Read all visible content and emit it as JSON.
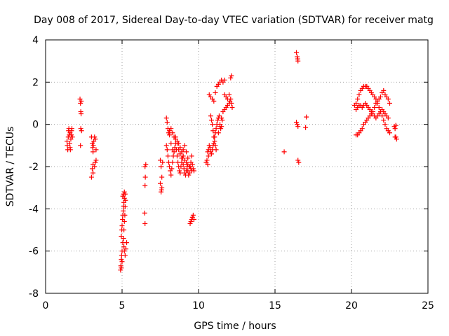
{
  "chart_data": {
    "type": "scatter",
    "title": "Day 008 of 2017, Sidereal Day-to-day VTEC variation (SDTVAR) for receiver matg",
    "xlabel": "GPS time / hours",
    "ylabel": "SDTVAR / TECUs",
    "xlim": [
      0,
      25
    ],
    "ylim": [
      -8,
      4
    ],
    "xticks": [
      0,
      5,
      10,
      15,
      20,
      25
    ],
    "yticks": [
      -8,
      -6,
      -4,
      -2,
      0,
      2,
      4
    ],
    "grid": true,
    "marker": "+",
    "color": "#ff0000",
    "series": [
      {
        "name": "SDTVAR",
        "points": [
          [
            1.4,
            -0.8
          ],
          [
            1.42,
            -1.0
          ],
          [
            1.45,
            -1.2
          ],
          [
            1.48,
            -0.6
          ],
          [
            1.5,
            -0.3
          ],
          [
            1.52,
            -0.2
          ],
          [
            1.55,
            -0.5
          ],
          [
            1.58,
            -0.9
          ],
          [
            1.6,
            -1.1
          ],
          [
            1.62,
            -1.2
          ],
          [
            1.65,
            -0.7
          ],
          [
            1.68,
            -0.5
          ],
          [
            1.7,
            -0.3
          ],
          [
            1.72,
            -0.2
          ],
          [
            1.75,
            -0.6
          ],
          [
            1.6,
            -0.4
          ],
          [
            2.25,
            1.2
          ],
          [
            2.28,
            1.0
          ],
          [
            2.3,
            0.6
          ],
          [
            2.32,
            0.5
          ],
          [
            2.3,
            -0.2
          ],
          [
            2.28,
            -1.0
          ],
          [
            2.35,
            -0.3
          ],
          [
            2.33,
            1.1
          ],
          [
            3.0,
            -0.6
          ],
          [
            3.05,
            -0.9
          ],
          [
            3.08,
            -1.1
          ],
          [
            3.1,
            -1.3
          ],
          [
            3.12,
            -1.0
          ],
          [
            3.15,
            -0.8
          ],
          [
            3.2,
            -0.6
          ],
          [
            3.25,
            -0.7
          ],
          [
            3.3,
            -1.2
          ],
          [
            3.1,
            -1.9
          ],
          [
            3.05,
            -2.1
          ],
          [
            3.0,
            -2.5
          ],
          [
            3.1,
            -2.3
          ],
          [
            3.2,
            -2.0
          ],
          [
            3.25,
            -1.8
          ],
          [
            3.3,
            -1.7
          ],
          [
            4.9,
            -6.9
          ],
          [
            4.92,
            -6.7
          ],
          [
            4.95,
            -6.4
          ],
          [
            4.97,
            -6.2
          ],
          [
            5.0,
            -6.0
          ],
          [
            5.05,
            -5.6
          ],
          [
            4.95,
            -5.3
          ],
          [
            4.98,
            -5.0
          ],
          [
            5.0,
            -4.8
          ],
          [
            5.03,
            -4.5
          ],
          [
            5.05,
            -4.3
          ],
          [
            5.08,
            -4.1
          ],
          [
            5.1,
            -3.9
          ],
          [
            5.12,
            -3.7
          ],
          [
            5.15,
            -3.5
          ],
          [
            5.05,
            -3.4
          ],
          [
            5.1,
            -3.3
          ],
          [
            5.15,
            -3.2
          ],
          [
            5.2,
            -3.3
          ],
          [
            5.22,
            -3.6
          ],
          [
            5.2,
            -3.9
          ],
          [
            5.18,
            -4.3
          ],
          [
            5.15,
            -4.6
          ],
          [
            5.12,
            -5.0
          ],
          [
            5.1,
            -5.4
          ],
          [
            5.12,
            -5.8
          ],
          [
            5.15,
            -6.0
          ],
          [
            5.2,
            -6.2
          ],
          [
            5.3,
            -5.6
          ],
          [
            5.25,
            -5.9
          ],
          [
            5.0,
            -6.5
          ],
          [
            4.95,
            -6.8
          ],
          [
            6.5,
            -2.0
          ],
          [
            6.52,
            -2.5
          ],
          [
            6.5,
            -2.9
          ],
          [
            6.48,
            -4.2
          ],
          [
            6.5,
            -4.7
          ],
          [
            6.55,
            -1.9
          ],
          [
            7.5,
            -1.7
          ],
          [
            7.55,
            -2.0
          ],
          [
            7.6,
            -2.5
          ],
          [
            7.6,
            -3.0
          ],
          [
            7.55,
            -3.2
          ],
          [
            7.5,
            -2.8
          ],
          [
            7.65,
            -1.8
          ],
          [
            7.58,
            -3.1
          ],
          [
            7.9,
            0.3
          ],
          [
            7.95,
            0.1
          ],
          [
            8.0,
            -0.2
          ],
          [
            8.05,
            -0.4
          ],
          [
            8.1,
            -0.3
          ],
          [
            8.2,
            -0.2
          ],
          [
            8.3,
            -0.4
          ],
          [
            8.4,
            -0.6
          ],
          [
            8.5,
            -0.7
          ],
          [
            8.6,
            -0.8
          ],
          [
            8.7,
            -0.9
          ],
          [
            8.8,
            -1.1
          ],
          [
            8.9,
            -1.3
          ],
          [
            9.0,
            -1.5
          ],
          [
            9.1,
            -1.7
          ],
          [
            9.2,
            -1.8
          ],
          [
            9.3,
            -1.9
          ],
          [
            9.4,
            -2.0
          ],
          [
            9.5,
            -2.1
          ],
          [
            9.55,
            -2.2
          ],
          [
            7.9,
            -1.0
          ],
          [
            7.95,
            -1.2
          ],
          [
            8.0,
            -1.5
          ],
          [
            8.05,
            -1.8
          ],
          [
            8.1,
            -2.0
          ],
          [
            8.15,
            -2.2
          ],
          [
            8.2,
            -2.4
          ],
          [
            8.25,
            -2.1
          ],
          [
            8.3,
            -1.8
          ],
          [
            8.35,
            -1.5
          ],
          [
            8.4,
            -1.3
          ],
          [
            8.45,
            -1.1
          ],
          [
            8.5,
            -0.9
          ],
          [
            8.55,
            -1.2
          ],
          [
            8.6,
            -1.5
          ],
          [
            8.65,
            -1.8
          ],
          [
            8.7,
            -2.0
          ],
          [
            8.75,
            -2.2
          ],
          [
            8.8,
            -2.3
          ],
          [
            8.85,
            -2.0
          ],
          [
            8.9,
            -1.8
          ],
          [
            8.95,
            -1.6
          ],
          [
            9.0,
            -1.9
          ],
          [
            9.05,
            -2.1
          ],
          [
            9.1,
            -2.3
          ],
          [
            9.15,
            -2.4
          ],
          [
            9.2,
            -2.2
          ],
          [
            9.25,
            -2.0
          ],
          [
            9.3,
            -2.2
          ],
          [
            9.35,
            -2.4
          ],
          [
            9.4,
            -2.3
          ],
          [
            9.45,
            -2.0
          ],
          [
            9.5,
            -1.8
          ],
          [
            9.55,
            -1.5
          ],
          [
            9.6,
            -1.9
          ],
          [
            9.65,
            -2.1
          ],
          [
            9.7,
            -2.2
          ],
          [
            8.5,
            -0.6
          ],
          [
            8.6,
            -0.9
          ],
          [
            8.7,
            -1.2
          ],
          [
            8.8,
            -1.4
          ],
          [
            8.9,
            -1.6
          ],
          [
            9.0,
            -1.2
          ],
          [
            9.1,
            -1.0
          ],
          [
            9.2,
            -1.3
          ],
          [
            9.3,
            -1.6
          ],
          [
            8.1,
            -0.5
          ],
          [
            8.2,
            -0.9
          ],
          [
            8.3,
            -1.2
          ],
          [
            9.45,
            -4.7
          ],
          [
            9.5,
            -4.6
          ],
          [
            9.55,
            -4.5
          ],
          [
            9.6,
            -4.4
          ],
          [
            9.65,
            -4.3
          ],
          [
            9.7,
            -4.5
          ],
          [
            10.5,
            -1.8
          ],
          [
            10.55,
            -1.7
          ],
          [
            10.6,
            -1.9
          ],
          [
            10.65,
            -1.5
          ],
          [
            10.6,
            -1.3
          ],
          [
            10.65,
            -1.2
          ],
          [
            10.7,
            -1.0
          ],
          [
            10.75,
            -1.1
          ],
          [
            10.8,
            -1.3
          ],
          [
            10.85,
            -1.4
          ],
          [
            10.9,
            -1.2
          ],
          [
            10.95,
            -1.0
          ],
          [
            11.0,
            -0.9
          ],
          [
            11.05,
            -0.6
          ],
          [
            11.1,
            -0.4
          ],
          [
            11.15,
            -0.2
          ],
          [
            11.2,
            0.0
          ],
          [
            11.25,
            0.2
          ],
          [
            11.3,
            0.3
          ],
          [
            11.35,
            0.4
          ],
          [
            11.4,
            0.0
          ],
          [
            11.45,
            -0.2
          ],
          [
            11.5,
            -0.1
          ],
          [
            11.55,
            0.2
          ],
          [
            10.7,
            1.4
          ],
          [
            10.8,
            1.3
          ],
          [
            10.9,
            1.2
          ],
          [
            11.0,
            1.1
          ],
          [
            11.1,
            1.5
          ],
          [
            11.2,
            1.8
          ],
          [
            11.3,
            1.9
          ],
          [
            11.4,
            2.0
          ],
          [
            11.5,
            2.1
          ],
          [
            11.6,
            2.0
          ],
          [
            11.7,
            2.1
          ],
          [
            12.1,
            2.2
          ],
          [
            12.15,
            2.3
          ],
          [
            10.8,
            0.4
          ],
          [
            10.85,
            0.2
          ],
          [
            10.9,
            0.0
          ],
          [
            10.95,
            -0.3
          ],
          [
            11.0,
            -0.6
          ],
          [
            11.05,
            -0.8
          ],
          [
            11.1,
            -1.0
          ],
          [
            11.15,
            -1.2
          ],
          [
            11.3,
            -0.4
          ],
          [
            11.4,
            -0.1
          ],
          [
            11.5,
            0.3
          ],
          [
            11.6,
            0.6
          ],
          [
            11.7,
            0.7
          ],
          [
            11.8,
            0.8
          ],
          [
            11.9,
            0.9
          ],
          [
            12.0,
            1.0
          ],
          [
            12.05,
            1.1
          ],
          [
            12.1,
            1.2
          ],
          [
            12.15,
            1.0
          ],
          [
            12.2,
            0.8
          ],
          [
            11.8,
            1.3
          ],
          [
            11.9,
            1.2
          ],
          [
            12.0,
            1.4
          ],
          [
            11.7,
            1.4
          ],
          [
            15.6,
            -1.3
          ],
          [
            16.4,
            3.4
          ],
          [
            16.45,
            3.2
          ],
          [
            16.5,
            3.0
          ],
          [
            16.48,
            3.1
          ],
          [
            16.4,
            0.1
          ],
          [
            16.45,
            0.0
          ],
          [
            16.5,
            -0.1
          ],
          [
            16.55,
            -1.8
          ],
          [
            16.5,
            -1.7
          ],
          [
            17.05,
            0.35
          ],
          [
            17.0,
            -0.15
          ],
          [
            20.3,
            -0.5
          ],
          [
            20.4,
            -0.5
          ],
          [
            20.5,
            -0.4
          ],
          [
            20.6,
            -0.3
          ],
          [
            20.7,
            -0.2
          ],
          [
            20.8,
            0.0
          ],
          [
            20.9,
            0.1
          ],
          [
            21.0,
            0.2
          ],
          [
            21.1,
            0.3
          ],
          [
            21.2,
            0.4
          ],
          [
            21.3,
            0.5
          ],
          [
            21.4,
            0.6
          ],
          [
            21.5,
            0.8
          ],
          [
            21.6,
            1.0
          ],
          [
            21.7,
            1.1
          ],
          [
            21.8,
            1.2
          ],
          [
            21.9,
            1.3
          ],
          [
            22.0,
            1.5
          ],
          [
            22.1,
            1.6
          ],
          [
            22.2,
            1.4
          ],
          [
            22.3,
            1.3
          ],
          [
            22.4,
            1.2
          ],
          [
            22.5,
            1.0
          ],
          [
            20.2,
            0.9
          ],
          [
            20.3,
            1.0
          ],
          [
            20.4,
            1.2
          ],
          [
            20.5,
            1.4
          ],
          [
            20.6,
            1.6
          ],
          [
            20.7,
            1.7
          ],
          [
            20.8,
            1.8
          ],
          [
            20.9,
            1.8
          ],
          [
            21.0,
            1.8
          ],
          [
            21.1,
            1.7
          ],
          [
            21.2,
            1.6
          ],
          [
            21.3,
            1.5
          ],
          [
            21.4,
            1.4
          ],
          [
            21.5,
            1.3
          ],
          [
            21.6,
            1.2
          ],
          [
            21.7,
            1.0
          ],
          [
            21.8,
            0.8
          ],
          [
            21.9,
            0.6
          ],
          [
            22.0,
            0.4
          ],
          [
            22.1,
            0.2
          ],
          [
            22.2,
            0.0
          ],
          [
            22.3,
            -0.2
          ],
          [
            22.4,
            -0.3
          ],
          [
            22.5,
            -0.4
          ],
          [
            20.3,
            0.7
          ],
          [
            20.4,
            0.8
          ],
          [
            20.5,
            0.9
          ],
          [
            20.6,
            0.9
          ],
          [
            20.7,
            0.8
          ],
          [
            20.8,
            0.9
          ],
          [
            20.9,
            1.0
          ],
          [
            21.0,
            0.9
          ],
          [
            21.1,
            0.8
          ],
          [
            21.2,
            0.7
          ],
          [
            21.3,
            0.6
          ],
          [
            21.4,
            0.5
          ],
          [
            21.5,
            0.4
          ],
          [
            21.6,
            0.3
          ],
          [
            21.7,
            0.4
          ],
          [
            21.8,
            0.5
          ],
          [
            21.9,
            0.6
          ],
          [
            22.0,
            0.7
          ],
          [
            22.1,
            0.6
          ],
          [
            22.2,
            0.5
          ],
          [
            22.3,
            0.4
          ],
          [
            22.4,
            0.3
          ],
          [
            22.8,
            -0.1
          ],
          [
            22.85,
            -0.2
          ],
          [
            22.9,
            -0.6
          ],
          [
            22.95,
            -0.7
          ],
          [
            22.85,
            -0.6
          ],
          [
            22.9,
            -0.05
          ]
        ]
      }
    ]
  }
}
